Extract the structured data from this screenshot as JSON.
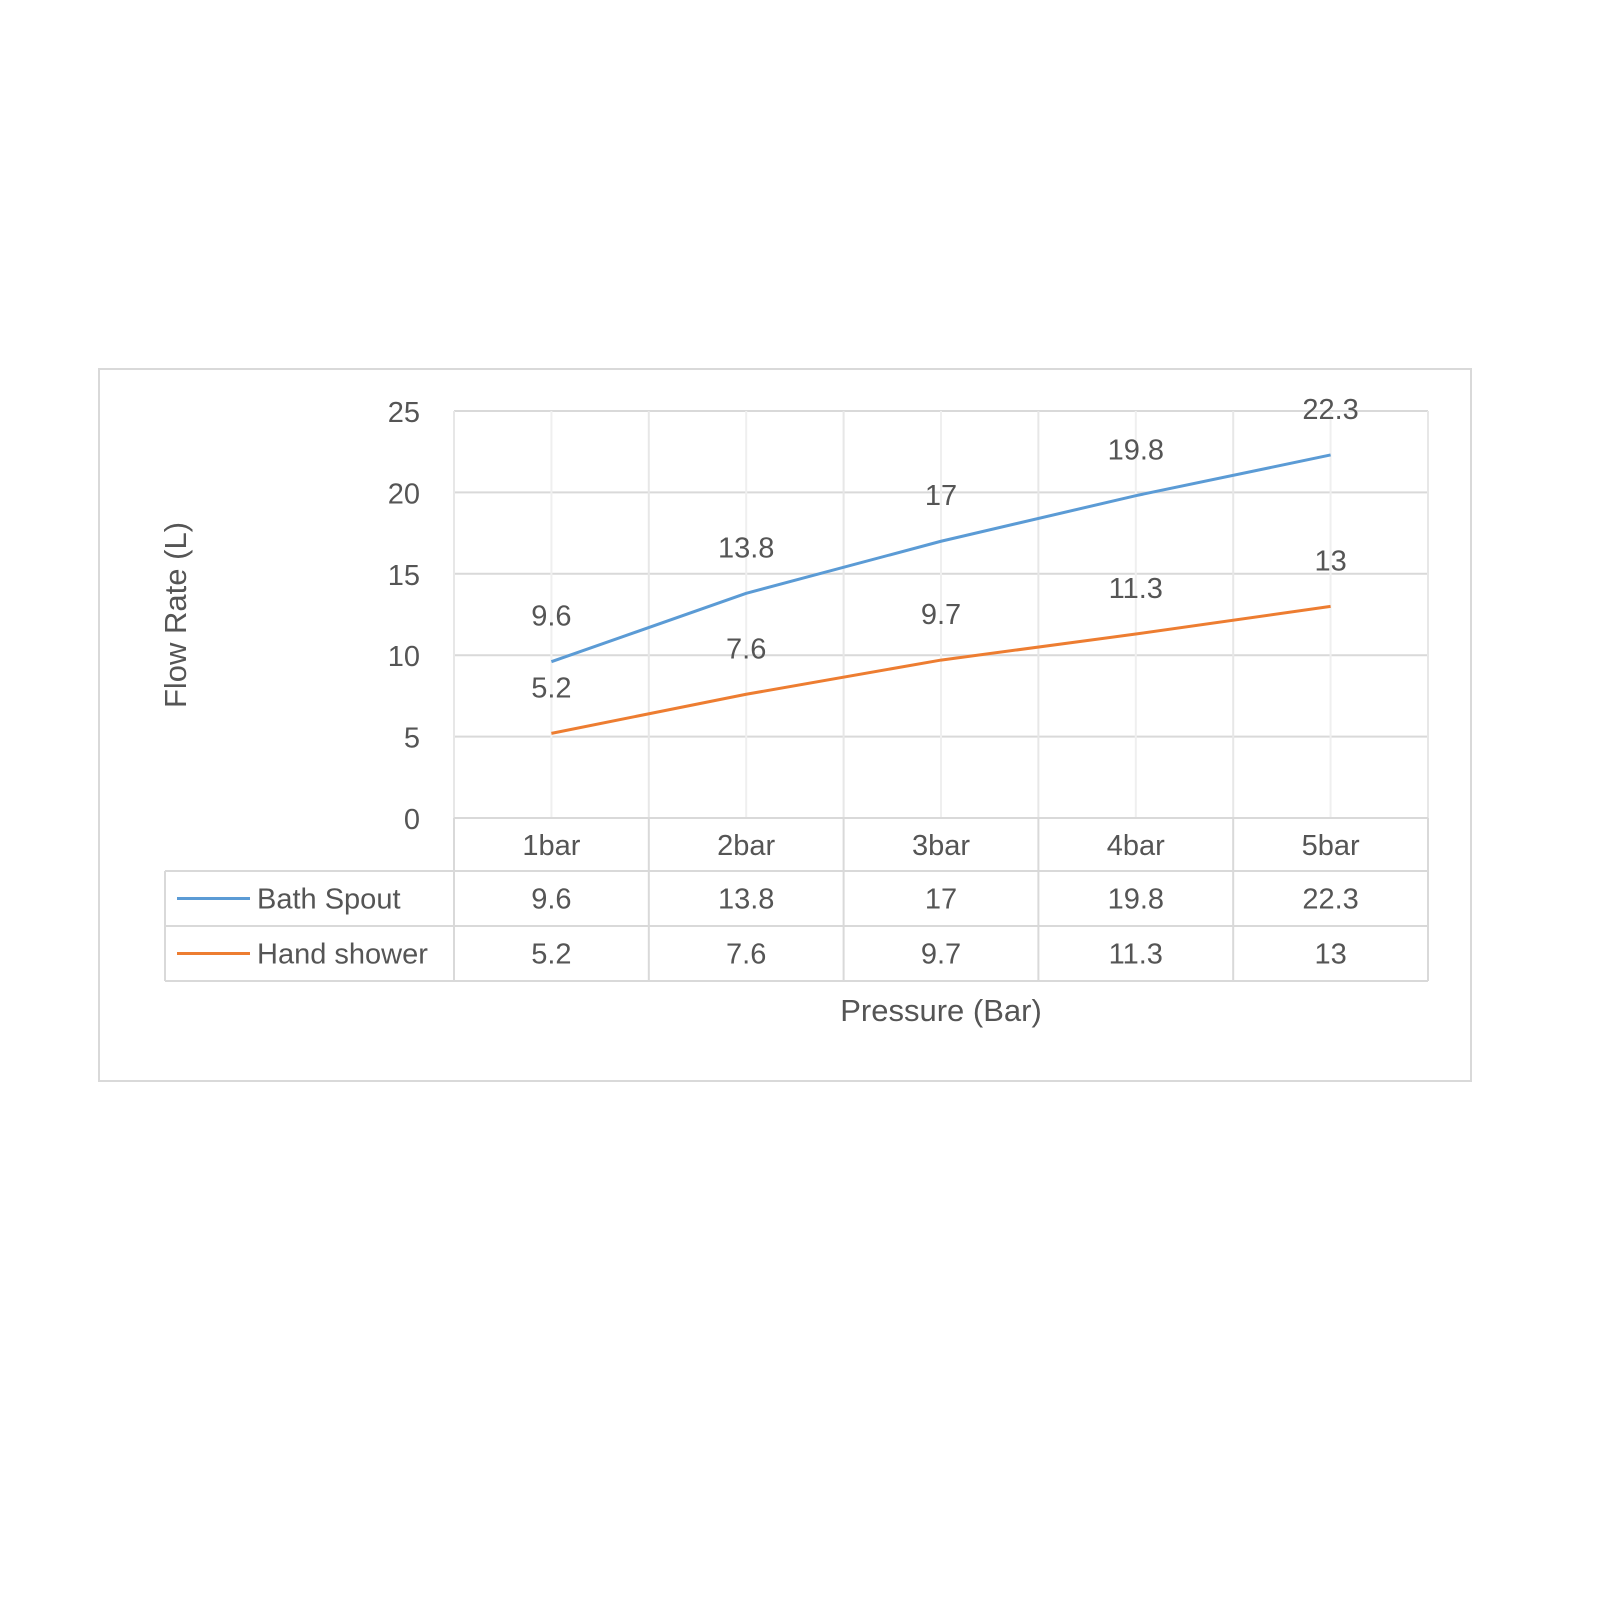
{
  "chart_data": {
    "type": "line",
    "title": "",
    "xlabel": "Pressure (Bar)",
    "ylabel": "Flow Rate (L)",
    "ylim": [
      0,
      25
    ],
    "yticks": [
      "0",
      "5",
      "10",
      "15",
      "20",
      "25"
    ],
    "grid": true,
    "legend": "data-table-left",
    "categories": [
      "1bar",
      "2bar",
      "3bar",
      "4bar",
      "5bar"
    ],
    "series": [
      {
        "name": "Bath Spout",
        "color": "#5b9bd5",
        "values": [
          9.6,
          13.8,
          17,
          19.8,
          22.3
        ],
        "labels": [
          "9.6",
          "13.8",
          "17",
          "19.8",
          "22.3"
        ]
      },
      {
        "name": "Hand shower",
        "color": "#ed7d31",
        "values": [
          5.2,
          7.6,
          9.7,
          11.3,
          13
        ],
        "labels": [
          "5.2",
          "7.6",
          "9.7",
          "11.3",
          "13"
        ]
      }
    ]
  }
}
